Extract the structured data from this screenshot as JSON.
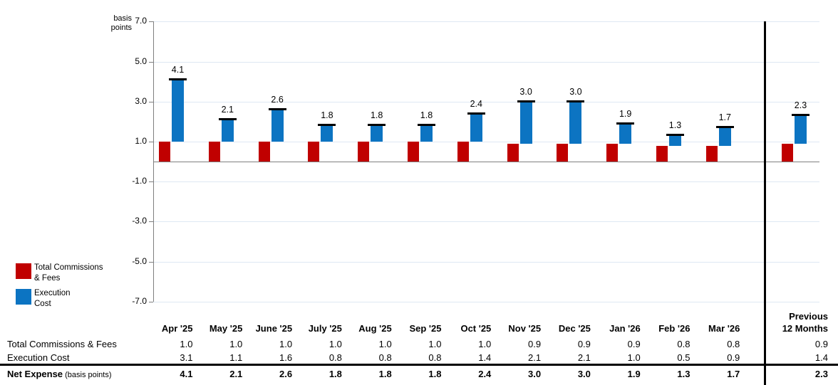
{
  "chart_data": {
    "type": "bar",
    "stacked": true,
    "title": "",
    "ylabel_lines": [
      "basis",
      "points"
    ],
    "ylim": [
      -7.0,
      7.0
    ],
    "y_ticks": [
      7.0,
      5.0,
      3.0,
      1.0,
      -1.0,
      -3.0,
      -5.0,
      -7.0
    ],
    "grid": true,
    "legend_position": "bottom-left",
    "categories": [
      "Apr '25",
      "May '25",
      "June '25",
      "July '25",
      "Aug '25",
      "Sep '25",
      "Oct '25",
      "Nov '25",
      "Dec '25",
      "Jan '26",
      "Feb '26",
      "Mar '26",
      "Previous 12 Months"
    ],
    "series": [
      {
        "name": "Total Commissions & Fees",
        "color": "#C00000",
        "values": [
          1.0,
          1.0,
          1.0,
          1.0,
          1.0,
          1.0,
          1.0,
          0.9,
          0.9,
          0.9,
          0.8,
          0.8,
          0.9
        ]
      },
      {
        "name": "Execution Cost",
        "color": "#0C74C2",
        "values": [
          3.1,
          1.1,
          1.6,
          0.8,
          0.8,
          0.8,
          1.4,
          2.1,
          2.1,
          1.0,
          0.5,
          0.9,
          1.4
        ]
      }
    ],
    "net_markers": {
      "name": "Net Expense (basis points)",
      "color": "#000000",
      "values": [
        4.1,
        2.1,
        2.6,
        1.8,
        1.8,
        1.8,
        2.4,
        3.0,
        3.0,
        1.9,
        1.3,
        1.7,
        2.3
      ]
    },
    "divider_after_category": "Mar '26"
  },
  "legend": {
    "items": [
      {
        "lines": [
          "Total Commissions",
          "& Fees"
        ],
        "color": "#C00000"
      },
      {
        "lines": [
          "Execution",
          "Cost"
        ],
        "color": "#0C74C2"
      }
    ]
  },
  "table": {
    "month_columns": [
      "Apr '25",
      "May '25",
      "June '25",
      "July '25",
      "Aug '25",
      "Sep '25",
      "Oct '25",
      "Nov '25",
      "Dec '25",
      "Jan '26",
      "Feb '26",
      "Mar '26"
    ],
    "summary_column_lines": [
      "Previous",
      "12 Months"
    ],
    "rows": [
      {
        "label": "Total Commissions & Fees",
        "suffix": "",
        "bold": false,
        "values": [
          "1.0",
          "1.0",
          "1.0",
          "1.0",
          "1.0",
          "1.0",
          "1.0",
          "0.9",
          "0.9",
          "0.9",
          "0.8",
          "0.8"
        ],
        "summary_value": "0.9"
      },
      {
        "label": "Execution Cost",
        "suffix": "",
        "bold": false,
        "values": [
          "3.1",
          "1.1",
          "1.6",
          "0.8",
          "0.8",
          "0.8",
          "1.4",
          "2.1",
          "2.1",
          "1.0",
          "0.5",
          "0.9"
        ],
        "summary_value": "1.4"
      },
      {
        "label": "Net Expense",
        "suffix": "(basis points)",
        "bold": true,
        "values": [
          "4.1",
          "2.1",
          "2.6",
          "1.8",
          "1.8",
          "1.8",
          "2.4",
          "3.0",
          "3.0",
          "1.9",
          "1.3",
          "1.7"
        ],
        "summary_value": "2.3"
      }
    ]
  },
  "colors": {
    "commissions_bar": "#C00000",
    "execution_bar": "#0C74C2",
    "gridline": "#DEE8F3",
    "axis_line": "#7F7F7F",
    "net_marker": "#000000",
    "divider": "#000000",
    "text": "#000000"
  }
}
